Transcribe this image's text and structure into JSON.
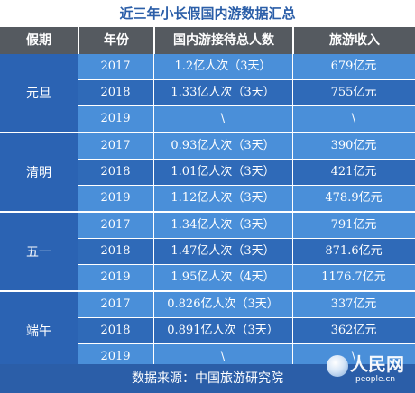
{
  "title": "近三年小长假国内游数据汇总",
  "columns": [
    "假期",
    "年份",
    "国内游接待总人数",
    "旅游收入"
  ],
  "groups": [
    {
      "holiday": "元旦",
      "rows": [
        {
          "year": "2017",
          "visitors": "1.2亿人次（3天）",
          "revenue": "679亿元"
        },
        {
          "year": "2018",
          "visitors": "1.33亿人次（3天）",
          "revenue": "755亿元"
        },
        {
          "year": "2019",
          "visitors": "\\",
          "revenue": "\\"
        }
      ]
    },
    {
      "holiday": "清明",
      "rows": [
        {
          "year": "2017",
          "visitors": "0.93亿人次（3天）",
          "revenue": "390亿元"
        },
        {
          "year": "2018",
          "visitors": "1.01亿人次（3天）",
          "revenue": "421亿元"
        },
        {
          "year": "2019",
          "visitors": "1.12亿人次（3天）",
          "revenue": "478.9亿元"
        }
      ]
    },
    {
      "holiday": "五一",
      "rows": [
        {
          "year": "2017",
          "visitors": "1.34亿人次（3天）",
          "revenue": "791亿元"
        },
        {
          "year": "2018",
          "visitors": "1.47亿人次（3天）",
          "revenue": "871.6亿元"
        },
        {
          "year": "2019",
          "visitors": "1.95亿人次（4天）",
          "revenue": "1176.7亿元"
        }
      ]
    },
    {
      "holiday": "端午",
      "rows": [
        {
          "year": "2017",
          "visitors": "0.826亿人次（3天）",
          "revenue": "337亿元"
        },
        {
          "year": "2018",
          "visitors": "0.891亿人次（3天）",
          "revenue": "362亿元"
        },
        {
          "year": "2019",
          "visitors": "\\",
          "revenue": "\\"
        }
      ]
    }
  ],
  "footer": "数据来源：中国旅游研究院",
  "logo": {
    "name": "人民网",
    "site": "people.cn"
  },
  "colors": {
    "title_text": "#2b5ea8",
    "header_bg": "#555a60",
    "row_light": "#4a8fd9",
    "row_dark": "#2f6ab8"
  }
}
